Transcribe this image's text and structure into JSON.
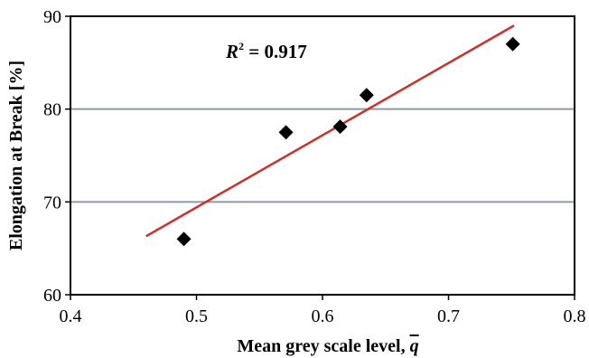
{
  "chart_data": {
    "type": "scatter",
    "title": "",
    "xlabel_text": "Mean grey scale level, ",
    "xlabel_symbol": "q",
    "ylabel": "Elongation at Break [%]",
    "xlim": [
      0.4,
      0.8
    ],
    "ylim": [
      60,
      90
    ],
    "x_ticks": [
      "0.4",
      "0.5",
      "0.6",
      "0.7",
      "0.8"
    ],
    "y_ticks": [
      "60",
      "70",
      "80",
      "90"
    ],
    "gridlines_y": [
      70,
      80
    ],
    "grid": "horizontal",
    "points": [
      {
        "x": 0.49,
        "y": 66.0
      },
      {
        "x": 0.571,
        "y": 77.5
      },
      {
        "x": 0.614,
        "y": 78.1
      },
      {
        "x": 0.635,
        "y": 81.5
      },
      {
        "x": 0.751,
        "y": 87.0
      }
    ],
    "trendline": {
      "x": [
        0.46,
        0.752
      ],
      "y": [
        66.3,
        89.0
      ]
    },
    "annotation": {
      "symbol": "R",
      "superscript": "2",
      "value_text": " = 0.917"
    },
    "colors": {
      "marker": "#000000",
      "trendline": "#c8322b",
      "grid": "#8a9aa6",
      "frame": "#000000"
    }
  }
}
